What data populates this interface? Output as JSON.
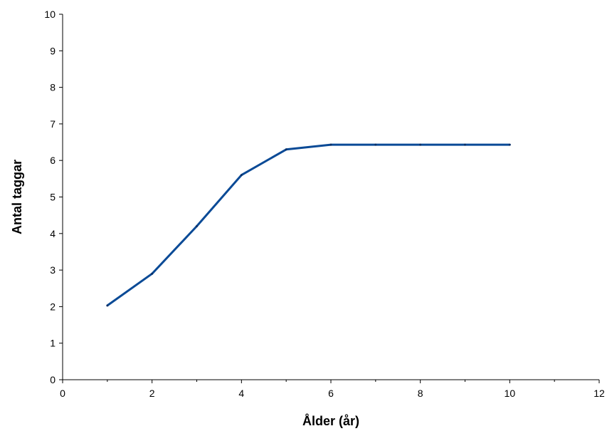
{
  "chart_data": {
    "type": "line",
    "title": "",
    "xlabel": "Ålder (år)",
    "ylabel": "Antal taggar",
    "xlim": [
      0,
      12
    ],
    "ylim": [
      0,
      10
    ],
    "xticks": [
      0,
      2,
      4,
      6,
      8,
      10,
      12
    ],
    "yticks": [
      0,
      1,
      2,
      3,
      4,
      5,
      6,
      7,
      8,
      9,
      10
    ],
    "grid": false,
    "legend": "none",
    "series": [
      {
        "color": "#0a4a96",
        "x": [
          1,
          2,
          3,
          4,
          5,
          6,
          7,
          8,
          9,
          10
        ],
        "y": [
          2.03,
          2.9,
          4.2,
          5.6,
          6.3,
          6.43,
          6.43,
          6.43,
          6.43,
          6.43
        ]
      }
    ]
  }
}
